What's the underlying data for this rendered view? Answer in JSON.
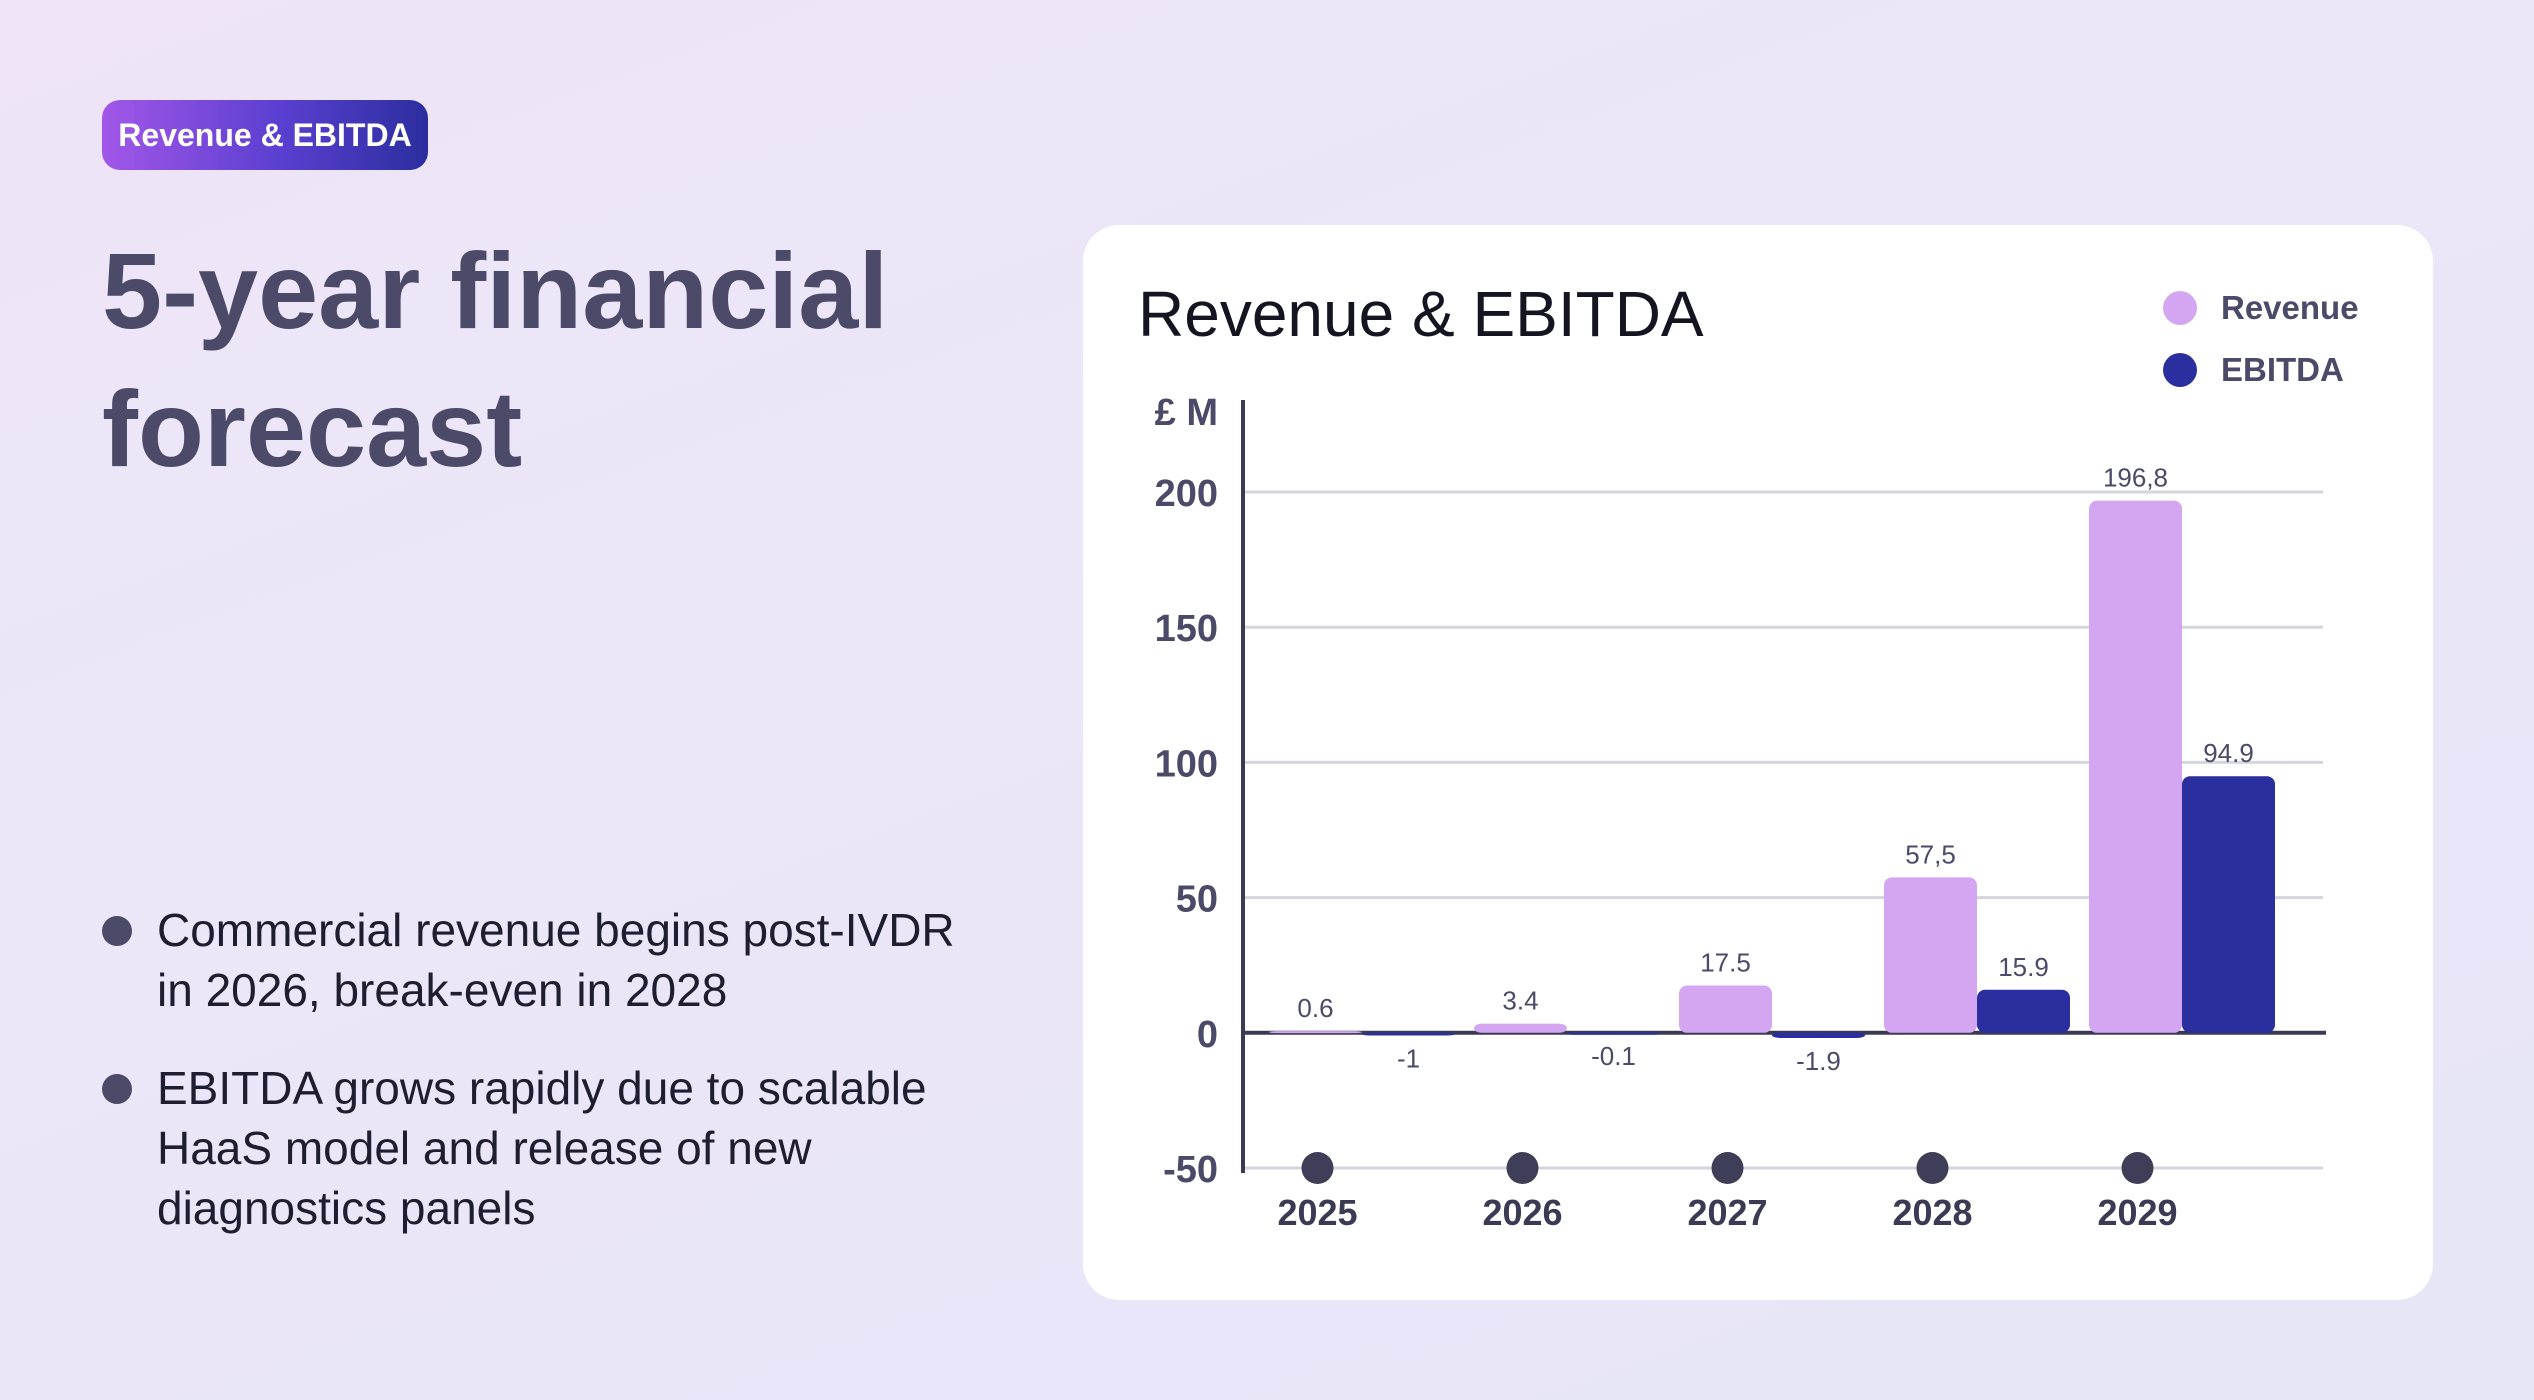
{
  "badge": "Revenue & EBITDA",
  "headline": "5-year financial forecast",
  "bullets": [
    "Commercial revenue begins post-IVDR in 2026, break-even in 2028",
    "EBITDA grows rapidly due to scalable HaaS model and release of new diagnostics panels"
  ],
  "chart_data": {
    "type": "bar",
    "title": "Revenue & EBITDA",
    "ylabel": "£ M",
    "ylim": [
      -50,
      200
    ],
    "yticks": [
      200,
      150,
      100,
      50,
      0,
      -50
    ],
    "categories": [
      "2025",
      "2026",
      "2027",
      "2028",
      "2029"
    ],
    "series": [
      {
        "name": "Revenue",
        "color": "#d4a6f2",
        "values": [
          0.6,
          3.4,
          17.5,
          57.5,
          196.8
        ],
        "labels": [
          "0.6",
          "3.4",
          "17.5",
          "57,5",
          "196,8"
        ]
      },
      {
        "name": "EBITDA",
        "color": "#2a2e9e",
        "values": [
          -1,
          -0.1,
          -1.9,
          15.9,
          94.9
        ],
        "labels": [
          "-1",
          "-0.1",
          "-1.9",
          "15.9",
          "94.9"
        ]
      }
    ],
    "legend_position": "top-right",
    "grid": true
  }
}
